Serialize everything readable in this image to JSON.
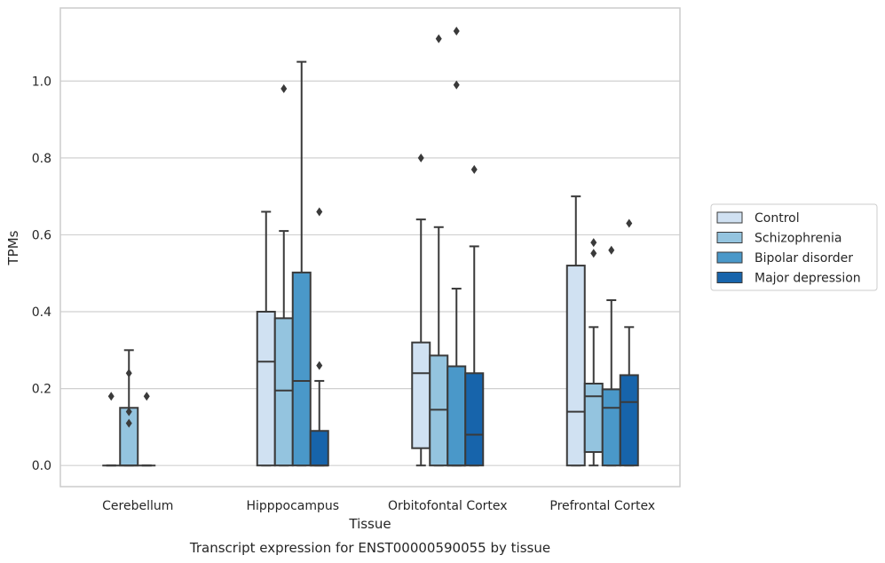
{
  "chart_data": {
    "type": "box",
    "caption": "Transcript expression for ENST00000590055 by tissue",
    "xlabel": "Tissue",
    "ylabel": "TPMs",
    "ylim": [
      -0.055,
      1.19
    ],
    "yticks": [
      0.0,
      0.2,
      0.4,
      0.6,
      0.8,
      1.0
    ],
    "ytick_labels": [
      "0.0",
      "0.2",
      "0.4",
      "0.6",
      "0.8",
      "1.0"
    ],
    "grid": "horizontal",
    "legend_position": "right",
    "categories": [
      "Cerebellum",
      "Hipppocampus",
      "Orbitofontal Cortex",
      "Prefrontal Cortex"
    ],
    "series": [
      {
        "name": "Control",
        "color": "#d0e1f2",
        "boxes": [
          {
            "whislo": 0.0,
            "q1": 0.0,
            "med": 0.0,
            "q3": 0.0,
            "whishi": 0.0,
            "fliers": [
              0.18
            ]
          },
          {
            "whislo": 0.0,
            "q1": 0.0,
            "med": 0.27,
            "q3": 0.4,
            "whishi": 0.66,
            "fliers": []
          },
          {
            "whislo": 0.0,
            "q1": 0.045,
            "med": 0.24,
            "q3": 0.32,
            "whishi": 0.64,
            "fliers": [
              0.8
            ]
          },
          {
            "whislo": 0.0,
            "q1": 0.0,
            "med": 0.14,
            "q3": 0.52,
            "whishi": 0.7,
            "fliers": []
          }
        ]
      },
      {
        "name": "Schizophrenia",
        "color": "#94c4df",
        "boxes": [
          {
            "whislo": 0.0,
            "q1": 0.0,
            "med": 0.0,
            "q3": 0.15,
            "whishi": 0.3,
            "fliers": [
              0.24,
              0.14,
              0.11
            ]
          },
          {
            "whislo": 0.0,
            "q1": 0.0,
            "med": 0.195,
            "q3": 0.383,
            "whishi": 0.61,
            "fliers": [
              0.98
            ]
          },
          {
            "whislo": 0.0,
            "q1": 0.0,
            "med": 0.145,
            "q3": 0.286,
            "whishi": 0.62,
            "fliers": [
              1.11
            ]
          },
          {
            "whislo": 0.0,
            "q1": 0.035,
            "med": 0.18,
            "q3": 0.213,
            "whishi": 0.36,
            "fliers": [
              0.58,
              0.552
            ]
          }
        ]
      },
      {
        "name": "Bipolar disorder",
        "color": "#4a98c9",
        "boxes": [
          {
            "whislo": 0.0,
            "q1": 0.0,
            "med": 0.0,
            "q3": 0.0,
            "whishi": 0.0,
            "fliers": [
              0.18
            ]
          },
          {
            "whislo": 0.0,
            "q1": 0.0,
            "med": 0.22,
            "q3": 0.502,
            "whishi": 1.05,
            "fliers": []
          },
          {
            "whislo": 0.0,
            "q1": 0.0,
            "med": 0.0,
            "q3": 0.258,
            "whishi": 0.46,
            "fliers": [
              1.13,
              0.99
            ]
          },
          {
            "whislo": 0.0,
            "q1": 0.0,
            "med": 0.15,
            "q3": 0.198,
            "whishi": 0.43,
            "fliers": [
              0.56
            ]
          }
        ]
      },
      {
        "name": "Major depression",
        "color": "#1764ab",
        "boxes": null
      }
    ],
    "major_depression_boxes": [
      null,
      {
        "whislo": 0.0,
        "q1": 0.0,
        "med": 0.0,
        "q3": 0.09,
        "whishi": 0.22,
        "fliers": [
          0.66,
          0.26
        ]
      },
      {
        "whislo": 0.0,
        "q1": 0.0,
        "med": 0.08,
        "q3": 0.24,
        "whishi": 0.57,
        "fliers": [
          0.77
        ]
      },
      {
        "whislo": 0.0,
        "q1": 0.0,
        "med": 0.165,
        "q3": 0.235,
        "whishi": 0.36,
        "fliers": [
          0.63
        ]
      }
    ]
  }
}
